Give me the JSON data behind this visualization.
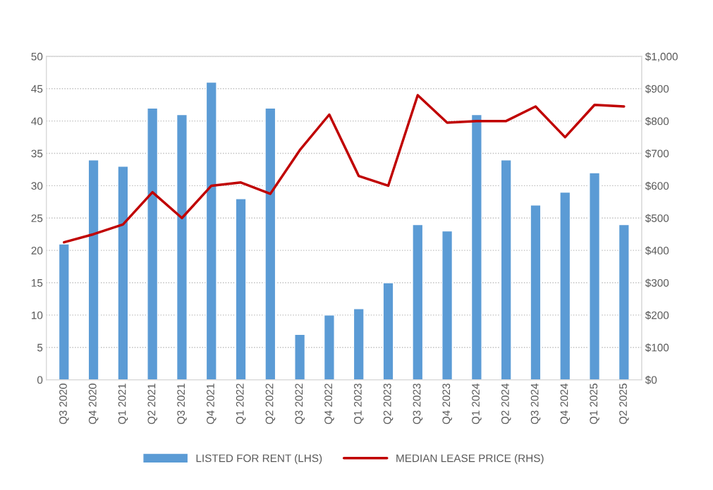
{
  "chart_data": {
    "type": "bar",
    "categories": [
      "Q3 2020",
      "Q4 2020",
      "Q1 2021",
      "Q2 2021",
      "Q3 2021",
      "Q4 2021",
      "Q1 2022",
      "Q2 2022",
      "Q3 2022",
      "Q4 2022",
      "Q1 2023",
      "Q2 2023",
      "Q3 2023",
      "Q4 2023",
      "Q1 2024",
      "Q2 2024",
      "Q3 2024",
      "Q4 2024",
      "Q1 2025",
      "Q2 2025"
    ],
    "series": [
      {
        "name": "LISTED FOR RENT (LHS)",
        "color": "#5b9bd5",
        "values": [
          21,
          34,
          33,
          42,
          41,
          46,
          28,
          42,
          7,
          10,
          11,
          15,
          24,
          23,
          41,
          34,
          27,
          29,
          32,
          24
        ]
      },
      {
        "name": "MEDIAN LEASE PRICE (RHS)",
        "type": "line",
        "axis": "y2",
        "color": "#c00000",
        "values": [
          425,
          450,
          480,
          580,
          500,
          600,
          610,
          575,
          710,
          820,
          630,
          600,
          880,
          795,
          800,
          800,
          845,
          750,
          850,
          845
        ]
      }
    ],
    "ylim": [
      0,
      50
    ],
    "yticks": [
      0,
      5,
      10,
      15,
      20,
      25,
      30,
      35,
      40,
      45,
      50
    ],
    "y2lim": [
      0,
      1000
    ],
    "y2ticks": [
      {
        "value": 0,
        "label": "$0"
      },
      {
        "value": 100,
        "label": "$100"
      },
      {
        "value": 200,
        "label": "$200"
      },
      {
        "value": 300,
        "label": "$300"
      },
      {
        "value": 400,
        "label": "$400"
      },
      {
        "value": 500,
        "label": "$500"
      },
      {
        "value": 600,
        "label": "$600"
      },
      {
        "value": 700,
        "label": "$700"
      },
      {
        "value": 800,
        "label": "$800"
      },
      {
        "value": 900,
        "label": "$900"
      },
      {
        "value": 1000,
        "label": "$1,000"
      }
    ],
    "grid": "y",
    "legend": "bottom",
    "line_style": "solid",
    "marker": "none"
  }
}
